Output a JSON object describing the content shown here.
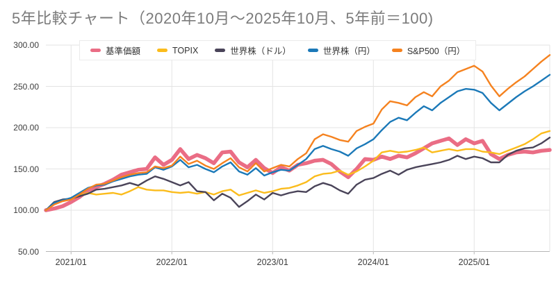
{
  "title": "5年比較チャート（2020年10月〜2025年10月、5年前＝100)",
  "title_color": "#7b7b7b",
  "chart_data": {
    "type": "line",
    "title": "5年比較チャート（2020年10月〜2025年10月、5年前＝100)",
    "period_start": "2020年10月",
    "period_end": "2025年10月",
    "baseline_note": "5年前＝100",
    "grid": true,
    "legend_position": "top",
    "ylim": [
      50,
      300
    ],
    "y_ticks": [
      {
        "value": 50,
        "label": "50.00"
      },
      {
        "value": 100,
        "label": "100.00"
      },
      {
        "value": 150,
        "label": "150.00"
      },
      {
        "value": 200,
        "label": "200.00"
      },
      {
        "value": 250,
        "label": "250.00"
      },
      {
        "value": 300,
        "label": "300.00"
      }
    ],
    "x_months_total": 60,
    "x_ticks": [
      {
        "label": "2021/01",
        "month_index": 3
      },
      {
        "label": "2022/01",
        "month_index": 15
      },
      {
        "label": "2023/01",
        "month_index": 27
      },
      {
        "label": "2024/01",
        "month_index": 39
      },
      {
        "label": "2025/01",
        "month_index": 51
      }
    ],
    "series": [
      {
        "name": "基準価額",
        "color": "#EA6D85",
        "width": 5.5,
        "values": [
          100,
          102,
          105,
          110,
          116,
          124,
          128,
          132,
          137,
          143,
          146,
          149,
          150,
          164,
          155,
          161,
          174,
          162,
          167,
          163,
          157,
          170,
          171,
          158,
          152,
          161,
          151,
          145,
          152,
          148,
          155,
          157,
          160,
          161,
          156,
          147,
          140,
          150,
          162,
          161,
          165,
          162,
          166,
          164,
          169,
          175,
          181,
          184,
          187,
          179,
          186,
          181,
          184,
          168,
          162,
          167,
          170,
          171,
          170,
          172,
          173
        ]
      },
      {
        "name": "TOPIX",
        "color": "#FBBC1C",
        "width": 2.4,
        "values": [
          100,
          108,
          111,
          113,
          118,
          121,
          119,
          120,
          121,
          119,
          123,
          128,
          125,
          124,
          124,
          122,
          121,
          122,
          120,
          122,
          119,
          123,
          125,
          118,
          121,
          124,
          121,
          123,
          126,
          127,
          130,
          134,
          141,
          144,
          145,
          148,
          143,
          147,
          153,
          160,
          170,
          172,
          170,
          171,
          173,
          176,
          170,
          172,
          174,
          172,
          174,
          174,
          171,
          170,
          168,
          172,
          176,
          180,
          186,
          193,
          196
        ]
      },
      {
        "name": "世界株（ドル）",
        "color": "#4A4459",
        "width": 2.4,
        "values": [
          100,
          110,
          113,
          114,
          117,
          120,
          125,
          126,
          128,
          130,
          133,
          130,
          136,
          141,
          138,
          134,
          130,
          134,
          123,
          122,
          112,
          120,
          115,
          104,
          111,
          119,
          113,
          121,
          118,
          121,
          123,
          122,
          129,
          133,
          130,
          124,
          120,
          131,
          137,
          139,
          144,
          148,
          143,
          149,
          152,
          154,
          156,
          158,
          161,
          166,
          162,
          165,
          163,
          158,
          158,
          167,
          172,
          175,
          176,
          181,
          188
        ]
      },
      {
        "name": "世界株（円）",
        "color": "#1B79B8",
        "width": 2.4,
        "values": [
          100,
          109,
          112,
          115,
          121,
          127,
          130,
          131,
          135,
          138,
          141,
          143,
          144,
          152,
          149,
          153,
          161,
          152,
          155,
          150,
          146,
          153,
          158,
          147,
          143,
          151,
          142,
          146,
          149,
          148,
          155,
          162,
          174,
          178,
          174,
          171,
          166,
          175,
          180,
          186,
          197,
          207,
          212,
          209,
          218,
          226,
          221,
          230,
          237,
          244,
          247,
          246,
          242,
          230,
          221,
          229,
          237,
          244,
          250,
          257,
          264
        ]
      },
      {
        "name": "S&P500（円）",
        "color": "#F5821F",
        "width": 2.4,
        "values": [
          100,
          107,
          111,
          113,
          119,
          126,
          131,
          132,
          136,
          140,
          143,
          145,
          146,
          153,
          151,
          154,
          165,
          156,
          160,
          154,
          150,
          157,
          163,
          152,
          147,
          157,
          147,
          151,
          155,
          153,
          162,
          169,
          186,
          192,
          189,
          185,
          183,
          196,
          201,
          205,
          222,
          232,
          230,
          227,
          237,
          243,
          238,
          250,
          257,
          267,
          271,
          275,
          268,
          251,
          238,
          247,
          255,
          262,
          271,
          280,
          288
        ]
      }
    ],
    "axis_color": "#b5b5b5",
    "gridline_color": "#e3e3e3"
  }
}
